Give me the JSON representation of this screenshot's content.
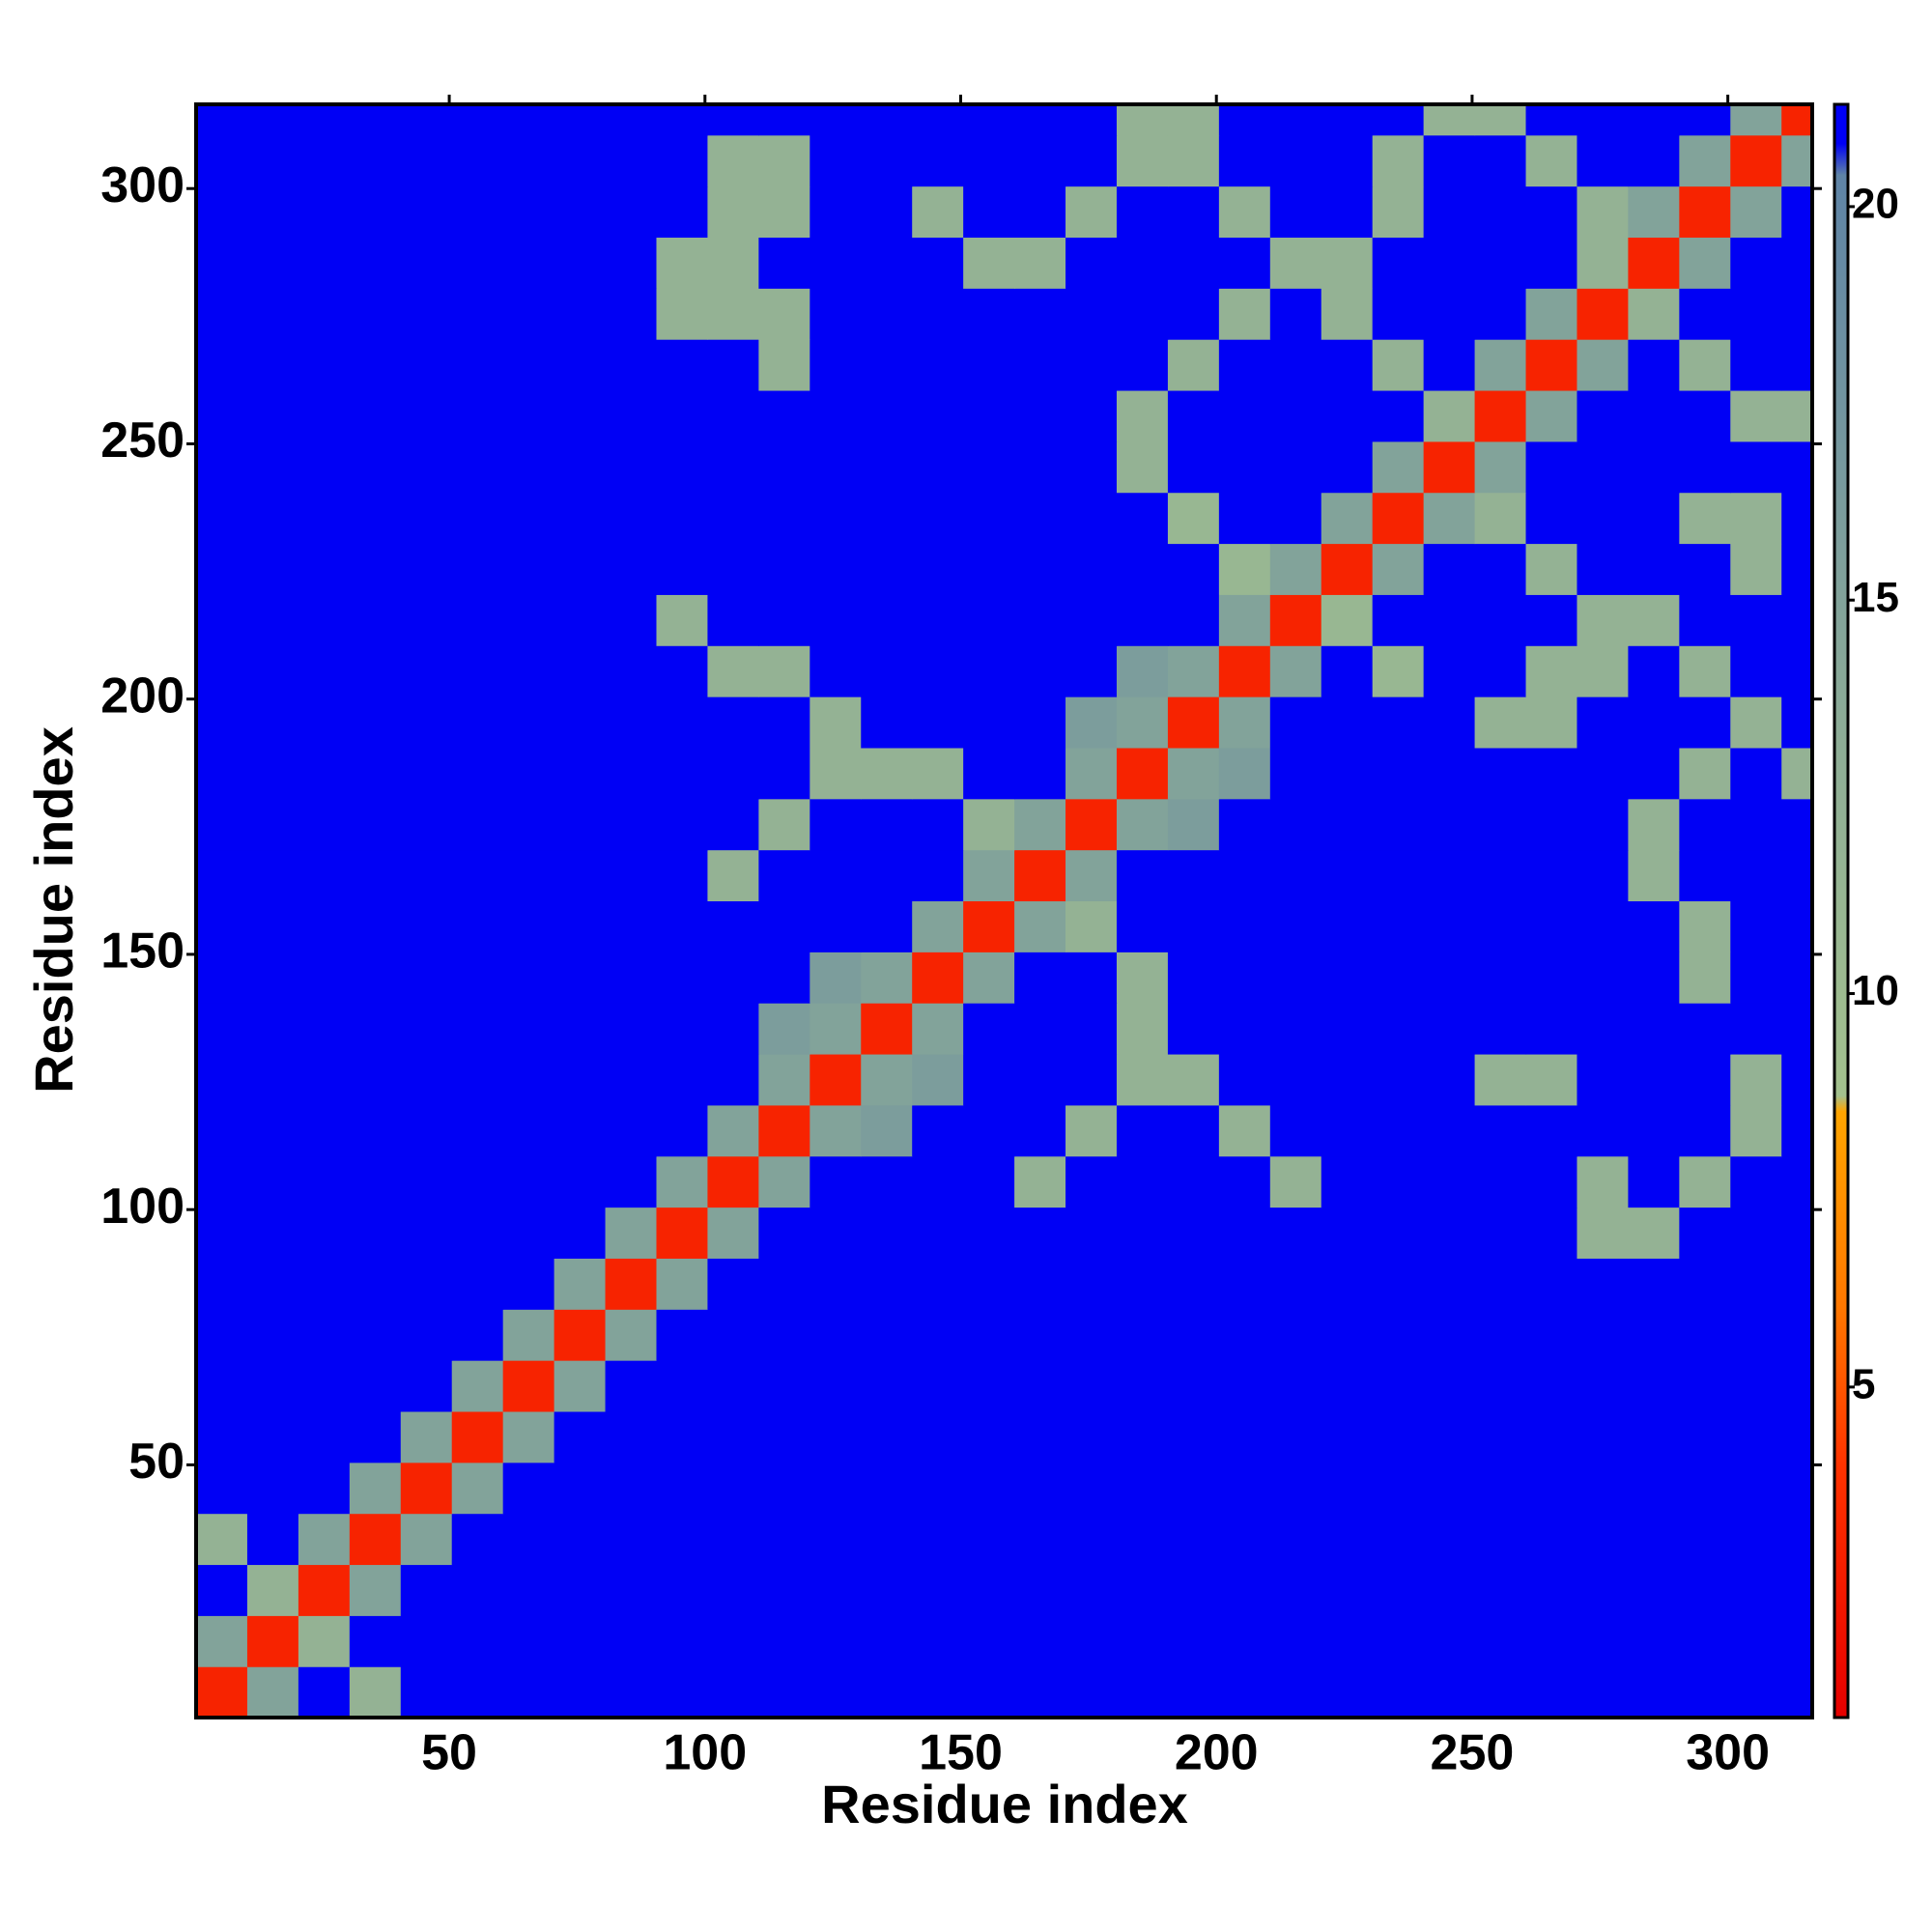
{
  "chart_data": {
    "type": "heatmap",
    "xlabel": "Residue index",
    "ylabel": "Residue index",
    "xlim": [
      0.5,
      316.5
    ],
    "ylim": [
      0.5,
      316.5
    ],
    "xticks": [
      50,
      100,
      150,
      200,
      250,
      300
    ],
    "yticks": [
      50,
      100,
      150,
      200,
      250,
      300
    ],
    "x_edges": [
      0.5,
      10.5,
      20.5,
      30.5,
      40.5,
      50.5,
      60.5,
      70.5,
      80.5,
      90.5,
      100.5,
      110.5,
      120.5,
      130.5,
      140.5,
      150.5,
      160.5,
      170.5,
      180.5,
      190.5,
      200.5,
      210.5,
      220.5,
      230.5,
      240.5,
      250.5,
      260.5,
      270.5,
      280.5,
      290.5,
      300.5,
      310.5,
      316.5
    ],
    "y_edges": [
      0.5,
      10.5,
      20.5,
      30.5,
      40.5,
      50.5,
      60.5,
      70.5,
      80.5,
      90.5,
      100.5,
      110.5,
      120.5,
      130.5,
      140.5,
      150.5,
      160.5,
      170.5,
      180.5,
      190.5,
      200.5,
      210.5,
      220.5,
      230.5,
      240.5,
      250.5,
      260.5,
      270.5,
      280.5,
      290.5,
      300.5,
      310.5,
      316.5
    ],
    "z": [
      [
        3,
        15,
        21,
        12,
        21,
        21,
        21,
        21,
        21,
        21,
        21,
        21,
        21,
        21,
        21,
        21,
        21,
        21,
        21,
        21,
        21,
        21,
        21,
        21,
        21,
        21,
        21,
        21,
        21,
        21,
        21,
        21
      ],
      [
        15,
        3,
        12,
        21,
        21,
        21,
        21,
        21,
        21,
        21,
        21,
        21,
        21,
        21,
        21,
        21,
        21,
        21,
        21,
        21,
        21,
        21,
        21,
        21,
        21,
        21,
        21,
        21,
        21,
        21,
        21,
        21
      ],
      [
        21,
        12,
        3,
        15,
        21,
        21,
        21,
        21,
        21,
        21,
        21,
        21,
        21,
        21,
        21,
        21,
        21,
        21,
        21,
        21,
        21,
        21,
        21,
        21,
        21,
        21,
        21,
        21,
        21,
        21,
        21,
        21
      ],
      [
        12,
        21,
        15,
        3,
        15,
        21,
        21,
        21,
        21,
        21,
        21,
        21,
        21,
        21,
        21,
        21,
        21,
        21,
        21,
        21,
        21,
        21,
        21,
        21,
        21,
        21,
        21,
        21,
        21,
        21,
        21,
        21
      ],
      [
        21,
        21,
        21,
        15,
        3,
        15,
        21,
        21,
        21,
        21,
        21,
        21,
        21,
        21,
        21,
        21,
        21,
        21,
        21,
        21,
        21,
        21,
        21,
        21,
        21,
        21,
        21,
        21,
        21,
        21,
        21,
        21
      ],
      [
        21,
        21,
        21,
        21,
        15,
        3,
        15,
        21,
        21,
        21,
        21,
        21,
        21,
        21,
        21,
        21,
        21,
        21,
        21,
        21,
        21,
        21,
        21,
        21,
        21,
        21,
        21,
        21,
        21,
        21,
        21,
        21
      ],
      [
        21,
        21,
        21,
        21,
        21,
        15,
        3,
        15,
        21,
        21,
        21,
        21,
        21,
        21,
        21,
        21,
        21,
        21,
        21,
        21,
        21,
        21,
        21,
        21,
        21,
        21,
        21,
        21,
        21,
        21,
        21,
        21
      ],
      [
        21,
        21,
        21,
        21,
        21,
        21,
        15,
        3,
        15,
        21,
        21,
        21,
        21,
        21,
        21,
        21,
        21,
        21,
        21,
        21,
        21,
        21,
        21,
        21,
        21,
        21,
        21,
        21,
        21,
        21,
        21,
        21
      ],
      [
        21,
        21,
        21,
        21,
        21,
        21,
        21,
        15,
        3,
        15,
        21,
        21,
        21,
        21,
        21,
        21,
        21,
        21,
        21,
        21,
        21,
        21,
        21,
        21,
        21,
        21,
        21,
        21,
        21,
        21,
        21,
        21
      ],
      [
        21,
        21,
        21,
        21,
        21,
        21,
        21,
        21,
        15,
        3,
        15,
        21,
        21,
        21,
        21,
        21,
        21,
        21,
        21,
        21,
        21,
        21,
        21,
        21,
        21,
        21,
        21,
        12,
        12,
        21,
        21,
        21
      ],
      [
        21,
        21,
        21,
        21,
        21,
        21,
        21,
        21,
        21,
        15,
        3,
        15,
        21,
        21,
        21,
        21,
        12,
        21,
        21,
        21,
        21,
        12,
        21,
        21,
        21,
        21,
        21,
        12,
        21,
        12,
        21,
        21
      ],
      [
        21,
        21,
        21,
        21,
        21,
        21,
        21,
        21,
        21,
        21,
        15,
        3,
        15,
        16,
        21,
        21,
        21,
        12,
        21,
        21,
        12,
        21,
        21,
        21,
        21,
        21,
        21,
        21,
        21,
        21,
        12,
        21
      ],
      [
        21,
        21,
        21,
        21,
        21,
        21,
        21,
        21,
        21,
        21,
        21,
        15,
        3,
        15,
        16,
        21,
        21,
        21,
        12,
        12,
        21,
        21,
        21,
        21,
        21,
        12,
        12,
        21,
        21,
        21,
        12,
        21
      ],
      [
        21,
        21,
        21,
        21,
        21,
        21,
        21,
        21,
        21,
        21,
        21,
        16,
        15,
        3,
        15,
        21,
        21,
        21,
        12,
        21,
        21,
        21,
        21,
        21,
        21,
        21,
        21,
        21,
        21,
        21,
        21,
        21
      ],
      [
        21,
        21,
        21,
        21,
        21,
        21,
        21,
        21,
        21,
        21,
        21,
        21,
        16,
        15,
        3,
        15,
        21,
        21,
        12,
        21,
        21,
        21,
        21,
        21,
        21,
        21,
        21,
        21,
        21,
        12,
        21,
        21
      ],
      [
        21,
        21,
        21,
        21,
        21,
        21,
        21,
        21,
        21,
        21,
        21,
        21,
        21,
        21,
        15,
        3,
        15,
        12,
        21,
        21,
        21,
        21,
        21,
        21,
        21,
        21,
        21,
        21,
        21,
        12,
        21,
        21
      ],
      [
        21,
        21,
        21,
        21,
        21,
        21,
        21,
        21,
        21,
        21,
        12,
        21,
        21,
        21,
        21,
        15,
        3,
        15,
        21,
        21,
        21,
        21,
        21,
        21,
        21,
        21,
        21,
        21,
        12,
        21,
        21,
        21
      ],
      [
        21,
        21,
        21,
        21,
        21,
        21,
        21,
        21,
        21,
        21,
        21,
        12,
        21,
        21,
        21,
        12,
        15,
        3,
        15,
        16,
        21,
        21,
        21,
        21,
        21,
        21,
        21,
        21,
        12,
        21,
        21,
        21
      ],
      [
        21,
        21,
        21,
        21,
        21,
        21,
        21,
        21,
        21,
        21,
        21,
        21,
        12,
        12,
        12,
        21,
        21,
        15,
        3,
        15,
        16,
        21,
        21,
        21,
        21,
        21,
        21,
        21,
        21,
        12,
        21,
        12
      ],
      [
        21,
        21,
        21,
        21,
        21,
        21,
        21,
        21,
        21,
        21,
        21,
        21,
        12,
        21,
        21,
        21,
        21,
        16,
        15,
        3,
        15,
        21,
        21,
        21,
        21,
        12,
        12,
        21,
        21,
        21,
        12,
        21
      ],
      [
        21,
        21,
        21,
        21,
        21,
        21,
        21,
        21,
        21,
        21,
        12,
        12,
        21,
        21,
        21,
        21,
        21,
        21,
        16,
        15,
        3,
        15,
        21,
        11,
        21,
        21,
        12,
        12,
        21,
        12,
        21,
        21
      ],
      [
        21,
        21,
        21,
        21,
        21,
        21,
        21,
        21,
        21,
        12,
        21,
        21,
        21,
        21,
        21,
        21,
        21,
        21,
        21,
        21,
        15,
        3,
        11,
        21,
        21,
        21,
        21,
        12,
        12,
        21,
        21,
        21
      ],
      [
        21,
        21,
        21,
        21,
        21,
        21,
        21,
        21,
        21,
        21,
        21,
        21,
        21,
        21,
        21,
        21,
        21,
        21,
        21,
        21,
        11,
        15,
        3,
        15,
        21,
        21,
        12,
        21,
        21,
        21,
        12,
        21
      ],
      [
        21,
        21,
        21,
        21,
        21,
        21,
        21,
        21,
        21,
        21,
        21,
        21,
        21,
        21,
        21,
        21,
        21,
        21,
        21,
        11,
        21,
        21,
        15,
        3,
        15,
        12,
        21,
        21,
        21,
        12,
        12,
        21
      ],
      [
        21,
        21,
        21,
        21,
        21,
        21,
        21,
        21,
        21,
        21,
        21,
        21,
        21,
        21,
        21,
        21,
        21,
        21,
        12,
        21,
        21,
        21,
        21,
        15,
        3,
        15,
        21,
        21,
        21,
        21,
        21,
        21
      ],
      [
        21,
        21,
        21,
        21,
        21,
        21,
        21,
        21,
        21,
        21,
        21,
        21,
        21,
        21,
        21,
        21,
        21,
        21,
        12,
        21,
        21,
        21,
        21,
        21,
        12,
        3,
        15,
        21,
        21,
        21,
        12,
        12
      ],
      [
        21,
        21,
        21,
        21,
        21,
        21,
        21,
        21,
        21,
        21,
        21,
        12,
        21,
        21,
        21,
        21,
        21,
        21,
        21,
        12,
        21,
        21,
        21,
        12,
        21,
        15,
        3,
        15,
        21,
        12,
        21,
        21
      ],
      [
        21,
        21,
        21,
        21,
        21,
        21,
        21,
        21,
        21,
        12,
        12,
        12,
        21,
        21,
        21,
        21,
        21,
        21,
        21,
        21,
        12,
        21,
        12,
        21,
        21,
        21,
        15,
        3,
        12,
        21,
        21,
        21
      ],
      [
        21,
        21,
        21,
        21,
        21,
        21,
        21,
        21,
        21,
        12,
        12,
        21,
        21,
        21,
        21,
        12,
        12,
        21,
        21,
        21,
        21,
        12,
        12,
        21,
        21,
        21,
        21,
        12,
        3,
        15,
        21,
        21
      ],
      [
        21,
        21,
        21,
        21,
        21,
        21,
        21,
        21,
        21,
        21,
        12,
        12,
        21,
        21,
        12,
        21,
        21,
        12,
        21,
        21,
        12,
        21,
        21,
        12,
        21,
        21,
        21,
        12,
        15,
        3,
        15,
        21
      ],
      [
        21,
        21,
        21,
        21,
        21,
        21,
        21,
        21,
        21,
        21,
        12,
        12,
        21,
        21,
        21,
        21,
        21,
        21,
        12,
        12,
        21,
        21,
        21,
        12,
        21,
        21,
        12,
        21,
        21,
        15,
        3,
        15
      ],
      [
        21,
        21,
        21,
        21,
        21,
        21,
        21,
        21,
        21,
        21,
        21,
        21,
        21,
        21,
        21,
        21,
        21,
        21,
        12,
        12,
        21,
        21,
        21,
        21,
        12,
        12,
        21,
        21,
        21,
        21,
        15,
        3
      ]
    ],
    "colorscale": [
      [
        0.8,
        "#e60000"
      ],
      [
        4,
        "#ff3300"
      ],
      [
        6,
        "#ff7700"
      ],
      [
        8.5,
        "#ffa500"
      ],
      [
        8.7,
        "#a3c18e"
      ],
      [
        13,
        "#8fae96"
      ],
      [
        20.4,
        "#5f84a6"
      ],
      [
        20.8,
        "#0000f5"
      ],
      [
        21.3,
        "#0000f5"
      ]
    ],
    "clim": [
      0.8,
      21.3
    ],
    "cticks": [
      5,
      10,
      15,
      20
    ]
  }
}
